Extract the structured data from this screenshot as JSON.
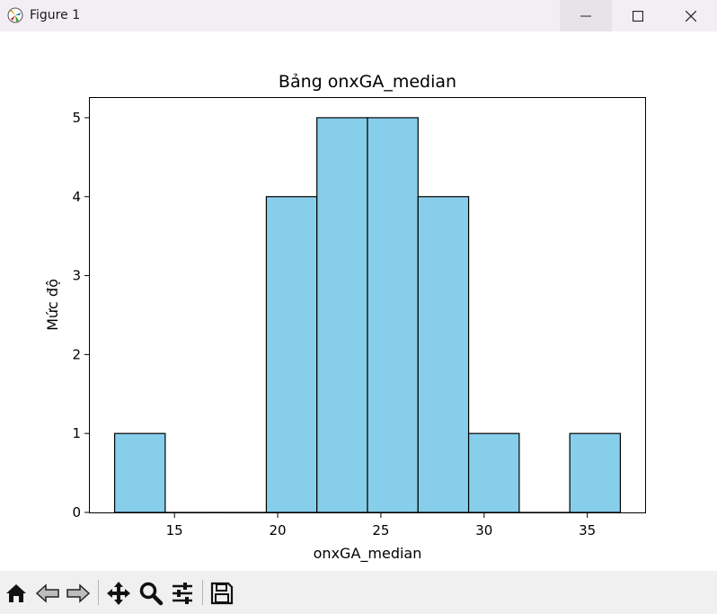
{
  "window": {
    "title": "Figure 1",
    "app_icon": "matplotlib-logo-icon",
    "controls": [
      "minimize-icon",
      "maximize-icon",
      "close-icon"
    ]
  },
  "toolbar": {
    "buttons": [
      "home-icon",
      "back-arrow-icon",
      "forward-arrow-icon",
      "pan-move-icon",
      "zoom-magnifier-icon",
      "configure-subplots-icon",
      "save-floppy-icon"
    ]
  },
  "chart_data": {
    "type": "bar",
    "title": "Bảng onxGA_median",
    "xlabel": "onxGA_median",
    "ylabel": "Mức độ",
    "bin_edges": [
      12.1,
      14.55,
      17.0,
      19.45,
      21.9,
      24.35,
      26.8,
      29.25,
      31.7,
      34.15,
      36.6
    ],
    "values": [
      1,
      0,
      0,
      4,
      5,
      5,
      4,
      1,
      0,
      1
    ],
    "xlim": [
      10.9,
      37.8
    ],
    "ylim": [
      0,
      5.25
    ],
    "xticks": [
      15,
      20,
      25,
      30,
      35
    ],
    "yticks": [
      0,
      1,
      2,
      3,
      4,
      5
    ],
    "bar_color": "#87ceeb",
    "edge_color": "#000000",
    "grid": false
  }
}
